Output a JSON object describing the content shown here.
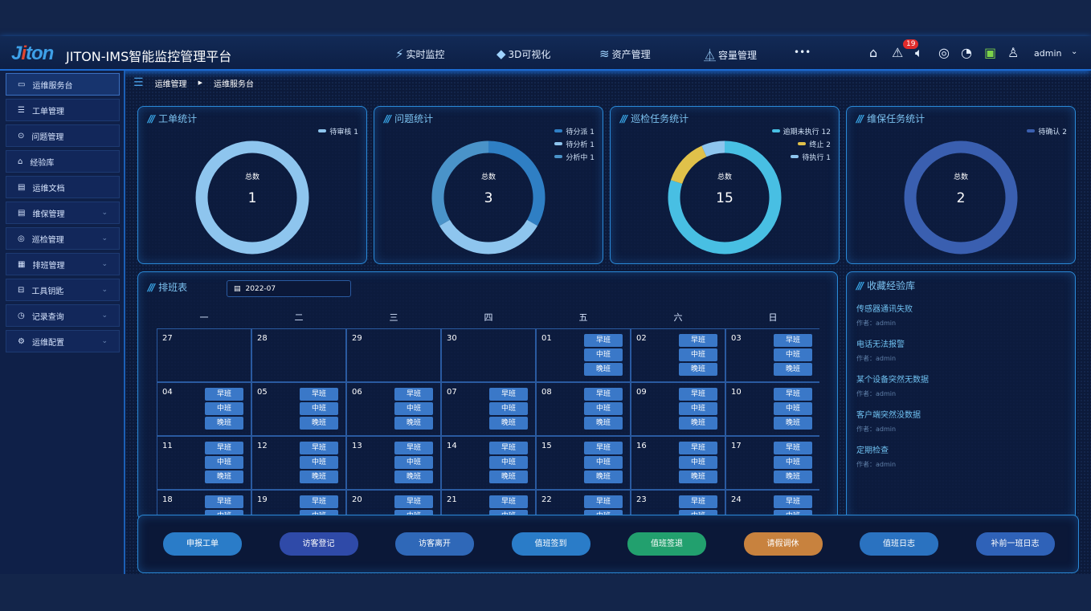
{
  "header": {
    "logo": "Jiton",
    "title": "JITON-IMS智能监控管理平台",
    "nav": [
      {
        "icon": "bolt-icon",
        "label": "实时监控"
      },
      {
        "icon": "cube-icon",
        "label": "3D可视化"
      },
      {
        "icon": "layers-icon",
        "label": "资产管理"
      },
      {
        "icon": "flask-icon",
        "label": "容量管理"
      }
    ],
    "more": "•••",
    "alert_count": "19",
    "user": "admin"
  },
  "sidebar": {
    "items": [
      {
        "label": "运维服务台",
        "icon": "monitor-icon",
        "active": true
      },
      {
        "label": "工单管理",
        "icon": "list-icon"
      },
      {
        "label": "问题管理",
        "icon": "location-icon"
      },
      {
        "label": "经验库",
        "icon": "cap-icon"
      },
      {
        "label": "运维文档",
        "icon": "doc-icon"
      },
      {
        "label": "维保管理",
        "icon": "doc-icon",
        "expandable": true
      },
      {
        "label": "巡检管理",
        "icon": "target-icon",
        "expandable": true
      },
      {
        "label": "排班管理",
        "icon": "calendar-icon",
        "expandable": true
      },
      {
        "label": "工具钥匙",
        "icon": "toolbox-icon",
        "expandable": true
      },
      {
        "label": "记录查询",
        "icon": "clock-icon",
        "expandable": true
      },
      {
        "label": "运维配置",
        "icon": "gear-icon",
        "expandable": true
      }
    ]
  },
  "breadcrumb": [
    "运维管理",
    "运维服务台"
  ],
  "stats": [
    {
      "title": "工单统计",
      "total_label": "总数",
      "total": "1",
      "segments": [
        {
          "label": "待审核 1",
          "value": 1,
          "color": "#8ec5ee"
        }
      ]
    },
    {
      "title": "问题统计",
      "total_label": "总数",
      "total": "3",
      "segments": [
        {
          "label": "待分派 1",
          "value": 1,
          "color": "#2f7fc4"
        },
        {
          "label": "待分析 1",
          "value": 1,
          "color": "#8ec5ee"
        },
        {
          "label": "分析中 1",
          "value": 1,
          "color": "#4a93c9"
        }
      ]
    },
    {
      "title": "巡检任务统计",
      "total_label": "总数",
      "total": "15",
      "segments": [
        {
          "label": "逾期未执行 12",
          "value": 12,
          "color": "#48bfe3"
        },
        {
          "label": "终止 2",
          "value": 2,
          "color": "#e0c14a"
        },
        {
          "label": "待执行 1",
          "value": 1,
          "color": "#8ec5ee"
        }
      ]
    },
    {
      "title": "维保任务统计",
      "total_label": "总数",
      "total": "2",
      "segments": [
        {
          "label": "待确认 2",
          "value": 2,
          "color": "#3a5fb0"
        }
      ]
    }
  ],
  "schedule": {
    "title": "排班表",
    "month": "2022-07",
    "weekdays": [
      "一",
      "二",
      "三",
      "四",
      "五",
      "六",
      "日"
    ],
    "shifts": [
      "早班",
      "中班",
      "晚班"
    ],
    "weeks": [
      [
        [
          "27",
          false
        ],
        [
          "28",
          false
        ],
        [
          "29",
          false
        ],
        [
          "30",
          false
        ],
        [
          "01",
          true
        ],
        [
          "02",
          true
        ],
        [
          "03",
          true
        ]
      ],
      [
        [
          "04",
          true
        ],
        [
          "05",
          true
        ],
        [
          "06",
          true
        ],
        [
          "07",
          true
        ],
        [
          "08",
          true
        ],
        [
          "09",
          true
        ],
        [
          "10",
          true
        ]
      ],
      [
        [
          "11",
          true
        ],
        [
          "12",
          true
        ],
        [
          "13",
          true
        ],
        [
          "14",
          true
        ],
        [
          "15",
          true
        ],
        [
          "16",
          true
        ],
        [
          "17",
          true
        ]
      ],
      [
        [
          "18",
          true
        ],
        [
          "19",
          true
        ],
        [
          "20",
          true
        ],
        [
          "21",
          true
        ],
        [
          "22",
          true
        ],
        [
          "23",
          true
        ],
        [
          "24",
          true
        ]
      ]
    ]
  },
  "experience": {
    "title": "收藏经验库",
    "items": [
      {
        "title": "传感器通讯失败",
        "author": "作者：admin"
      },
      {
        "title": "电话无法报警",
        "author": "作者：admin"
      },
      {
        "title": "某个设备突然无数据",
        "author": "作者：admin"
      },
      {
        "title": "客户端突然没数据",
        "author": "作者：admin"
      },
      {
        "title": "定期检查",
        "author": "作者：admin"
      }
    ]
  },
  "actions": [
    {
      "label": "申报工单",
      "color": "#2a7cc8"
    },
    {
      "label": "访客登记",
      "color": "#2f4aa8"
    },
    {
      "label": "访客离开",
      "color": "#2f68b8"
    },
    {
      "label": "值班签到",
      "color": "#2a7cc8"
    },
    {
      "label": "值班签退",
      "color": "#22a06e"
    },
    {
      "label": "请假调休",
      "color": "#c8823e"
    },
    {
      "label": "值班日志",
      "color": "#2a72c0"
    },
    {
      "label": "补前一班日志",
      "color": "#2f62b8"
    }
  ]
}
